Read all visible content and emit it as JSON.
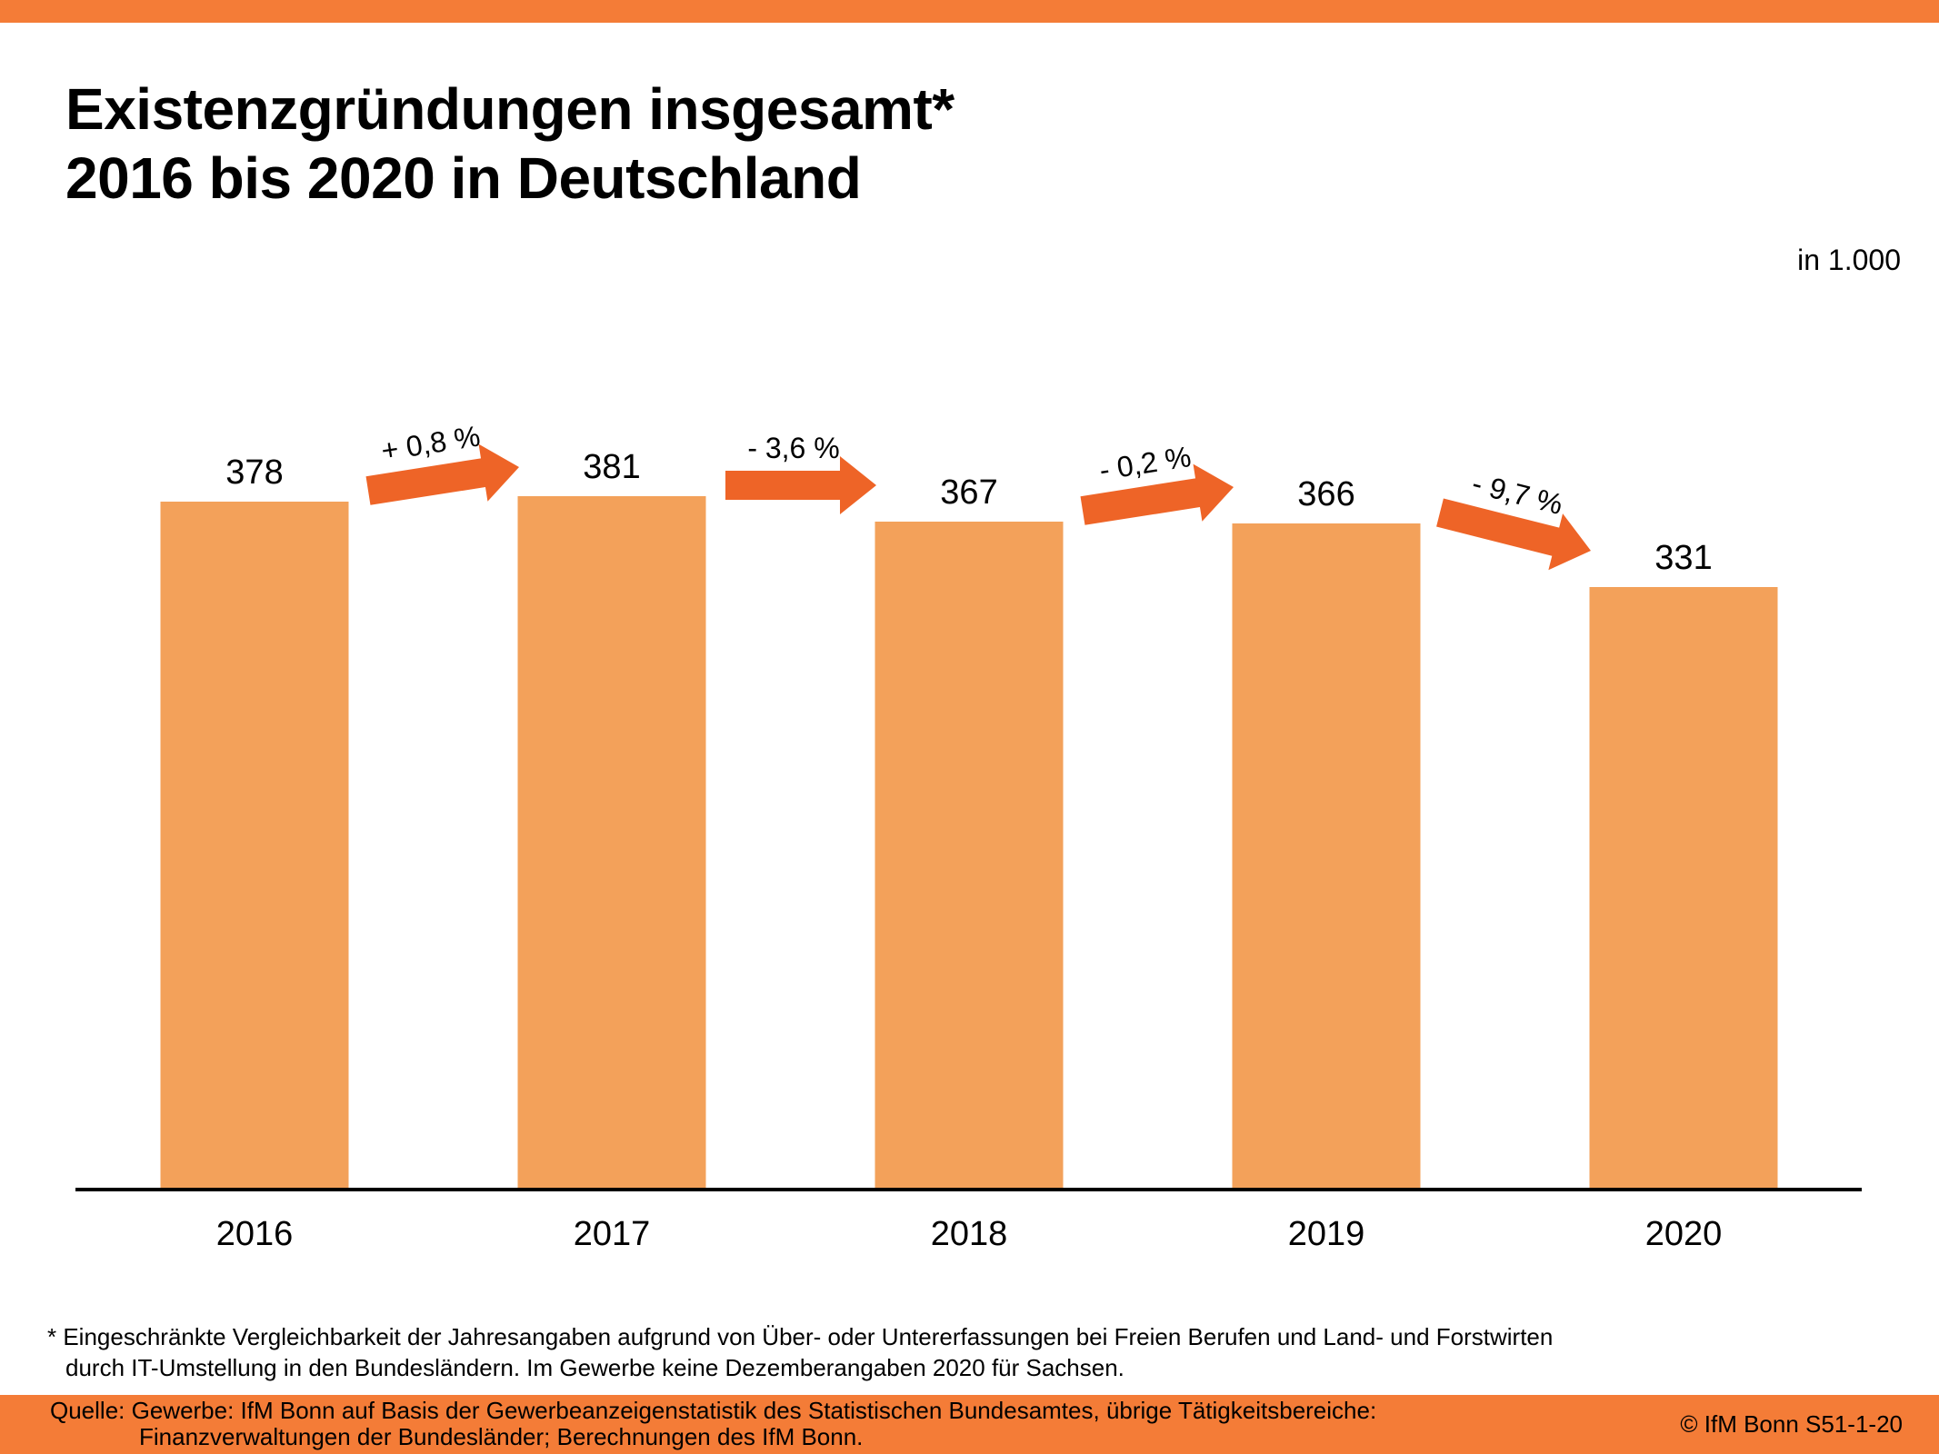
{
  "header": {
    "title_line1": "Existenzgründungen insgesamt*",
    "title_line2": "2016 bis 2020 in Deutschland",
    "unit_label": "in 1.000"
  },
  "colors": {
    "brand_orange": "#f47c37",
    "bar": "#f3a15a",
    "arrow": "#ee6427",
    "axis": "#000000"
  },
  "chart_data": {
    "type": "bar",
    "title": "Existenzgründungen insgesamt* 2016 bis 2020 in Deutschland",
    "xlabel": "",
    "ylabel": "in 1.000",
    "categories": [
      "2016",
      "2017",
      "2018",
      "2019",
      "2020"
    ],
    "values": [
      378,
      381,
      367,
      366,
      331
    ],
    "value_labels": [
      "378",
      "381",
      "367",
      "366",
      "331"
    ],
    "ylim": [
      0,
      381
    ],
    "grid": false,
    "legend": "none",
    "annotations": [
      {
        "from": "2016",
        "to": "2017",
        "label": "+ 0,8 %",
        "change_pct": 0.8
      },
      {
        "from": "2017",
        "to": "2018",
        "label": "- 3,6 %",
        "change_pct": -3.6
      },
      {
        "from": "2018",
        "to": "2019",
        "label": "- 0,2 %",
        "change_pct": -0.2
      },
      {
        "from": "2019",
        "to": "2020",
        "label": "- 9,7 %",
        "change_pct": -9.7
      }
    ]
  },
  "footnote": {
    "line1": "* Eingeschränkte Vergleichbarkeit der Jahresangaben aufgrund von Über- oder Untererfassungen bei Freien Berufen und Land- und Forstwirten",
    "line2": "durch IT-Umstellung in den Bundesländern. Im Gewerbe keine Dezemberangaben 2020 für Sachsen."
  },
  "source": {
    "line1": "Quelle: Gewerbe: IfM Bonn auf Basis der Gewerbeanzeigenstatistik des Statistischen Bundesamtes, übrige Tätigkeitsbereiche:",
    "line2": "Finanzverwaltungen der Bundesländer; Berechnungen des IfM Bonn.",
    "copyright": "© IfM Bonn  S51-1-20"
  }
}
